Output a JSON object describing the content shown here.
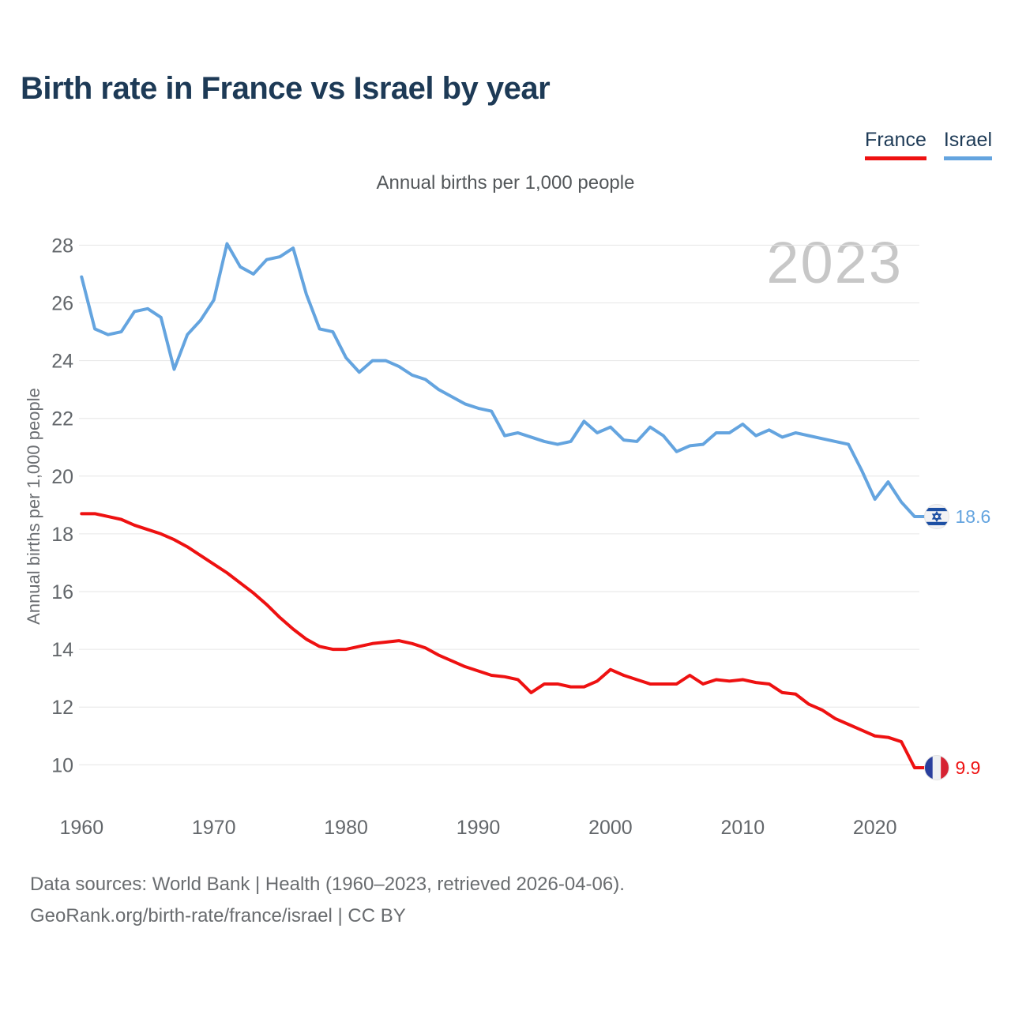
{
  "header": {
    "title": "Birth rate in France vs Israel by year"
  },
  "legend": {
    "items": [
      {
        "label": "France",
        "color": "#ee1111"
      },
      {
        "label": "Israel",
        "color": "#64a4df"
      }
    ]
  },
  "subtitle": "Annual births per 1,000 people",
  "y_axis_title": "Annual births per 1,000 people",
  "footer": {
    "line1": "Data sources: World Bank | Health (1960–2023, retrieved 2026-04-06).",
    "line2": "GeoRank.org/birth-rate/france/israel | CC BY"
  },
  "chart_data": {
    "type": "line",
    "title": "Birth rate in France vs Israel by year",
    "ylabel": "Annual births per 1,000 people",
    "watermark": "2023",
    "grid": "horizontal",
    "legend_position": "top-right",
    "x_range": [
      1960,
      2023
    ],
    "ylim": [
      9.4,
      28.6
    ],
    "x_ticks": [
      1960,
      1970,
      1980,
      1990,
      2000,
      2010,
      2020
    ],
    "y_ticks": [
      10,
      12,
      14,
      16,
      18,
      20,
      22,
      24,
      26,
      28
    ],
    "x": [
      1960,
      1961,
      1962,
      1963,
      1964,
      1965,
      1966,
      1967,
      1968,
      1969,
      1970,
      1971,
      1972,
      1973,
      1974,
      1975,
      1976,
      1977,
      1978,
      1979,
      1980,
      1981,
      1982,
      1983,
      1984,
      1985,
      1986,
      1987,
      1988,
      1989,
      1990,
      1991,
      1992,
      1993,
      1994,
      1995,
      1996,
      1997,
      1998,
      1999,
      2000,
      2001,
      2002,
      2003,
      2004,
      2005,
      2006,
      2007,
      2008,
      2009,
      2010,
      2011,
      2012,
      2013,
      2014,
      2015,
      2016,
      2017,
      2018,
      2019,
      2020,
      2021,
      2022,
      2023
    ],
    "series": [
      {
        "name": "France",
        "color": "#ee1111",
        "flag": "france",
        "end_label": "9.9",
        "values": [
          18.7,
          18.7,
          18.6,
          18.5,
          18.3,
          18.15,
          18.0,
          17.8,
          17.55,
          17.25,
          16.95,
          16.65,
          16.3,
          15.95,
          15.55,
          15.1,
          14.7,
          14.35,
          14.1,
          14.0,
          14.0,
          14.1,
          14.2,
          14.25,
          14.3,
          14.2,
          14.05,
          13.8,
          13.6,
          13.4,
          13.25,
          13.1,
          13.05,
          12.95,
          12.5,
          12.8,
          12.8,
          12.7,
          12.7,
          12.9,
          13.3,
          13.1,
          12.95,
          12.8,
          12.8,
          12.8,
          13.1,
          12.8,
          12.95,
          12.9,
          12.95,
          12.85,
          12.8,
          12.5,
          12.45,
          12.1,
          11.9,
          11.6,
          11.4,
          11.2,
          11.0,
          10.95,
          10.8,
          9.9
        ]
      },
      {
        "name": "Israel",
        "color": "#64a4df",
        "flag": "israel",
        "end_label": "18.6",
        "values": [
          26.9,
          25.1,
          24.9,
          25.0,
          25.7,
          25.8,
          25.5,
          23.7,
          24.9,
          25.4,
          26.1,
          28.05,
          27.25,
          27.0,
          27.5,
          27.6,
          27.9,
          26.3,
          25.1,
          25.0,
          24.1,
          23.6,
          24.0,
          24.0,
          23.8,
          23.5,
          23.35,
          23.0,
          22.75,
          22.5,
          22.35,
          22.25,
          21.4,
          21.5,
          21.35,
          21.2,
          21.1,
          21.2,
          21.9,
          21.5,
          21.7,
          21.25,
          21.2,
          21.7,
          21.4,
          20.85,
          21.05,
          21.1,
          21.5,
          21.5,
          21.8,
          21.4,
          21.6,
          21.35,
          21.5,
          21.4,
          21.3,
          21.2,
          21.1,
          20.2,
          19.2,
          19.8,
          19.1,
          18.6
        ]
      }
    ],
    "flag_colors": {
      "france_blue": "#2a3f9d",
      "france_white": "#eef0f2",
      "france_red": "#d62332",
      "israel_blue": "#1d4fa3",
      "israel_bg": "#f2f2f4"
    }
  }
}
